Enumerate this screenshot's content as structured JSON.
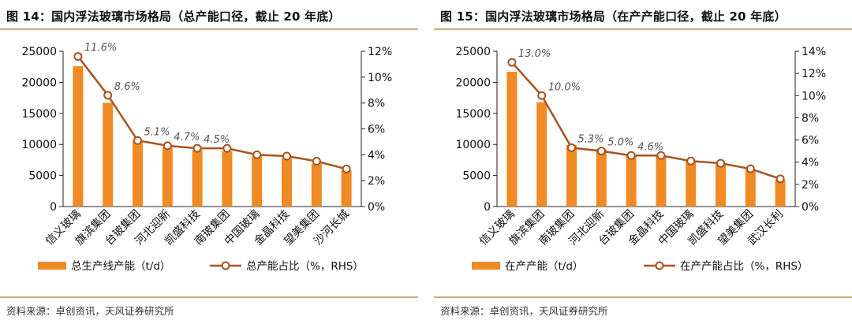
{
  "colors": {
    "bar": "#f08a24",
    "line": "#a9531e",
    "marker_fill": "#ffffff",
    "rule": "#d4aa7d"
  },
  "panels": [
    {
      "title": "图 14：国内浮法玻璃市场格局（总产能口径，截止 20 年底）",
      "source": "资料来源：卓创资讯，天风证券研究所",
      "chart_data": {
        "type": "bar",
        "categories": [
          "信义玻璃",
          "旗滨集团",
          "台玻集团",
          "河北迎新",
          "凯盛科技",
          "南玻集团",
          "中国玻璃",
          "金晶科技",
          "望美集团",
          "沙河长城"
        ],
        "series": [
          {
            "name": "总生产线产能（t/d）",
            "type": "bar",
            "axis": "left",
            "values": [
              22600,
              16700,
              10600,
              9500,
              9100,
              8900,
              8100,
              7800,
              6900,
              5800
            ]
          },
          {
            "name": "总产能占比（%，RHS）",
            "type": "line",
            "axis": "right",
            "values": [
              11.6,
              8.6,
              5.1,
              4.7,
              4.5,
              4.5,
              4.0,
              3.9,
              3.5,
              2.9
            ]
          }
        ],
        "annotations": [
          {
            "index": 0,
            "text": "11.6%"
          },
          {
            "index": 1,
            "text": "8.6%"
          },
          {
            "index": 2,
            "text": "5.1%"
          },
          {
            "index": 3,
            "text": "4.7%"
          },
          {
            "index": 4,
            "text": "4.5%"
          }
        ],
        "ylim_left": [
          0,
          25000
        ],
        "yticks_left": [
          "0",
          "5000",
          "10000",
          "15000",
          "20000",
          "25000"
        ],
        "ylim_right": [
          0,
          12
        ],
        "yticks_right": [
          "0%",
          "2%",
          "4%",
          "6%",
          "8%",
          "10%",
          "12%"
        ],
        "legend_placement": "bottom"
      }
    },
    {
      "title": "图 15：国内浮法玻璃市场格局（在产产能口径，截止 20 年底）",
      "source": "资料来源：卓创资讯，天风证券研究所",
      "chart_data": {
        "type": "bar",
        "categories": [
          "信义玻璃",
          "旗滨集团",
          "南玻集团",
          "河北迎新",
          "台玻集团",
          "金晶科技",
          "中国玻璃",
          "凯盛科技",
          "望美集团",
          "武汉长利"
        ],
        "series": [
          {
            "name": "在产产能（t/d）",
            "type": "bar",
            "axis": "left",
            "values": [
              21700,
              16800,
              9900,
              9300,
              8300,
              8100,
              7300,
              6800,
              6000,
              4300
            ]
          },
          {
            "name": "在产产能占比（%，RHS）",
            "type": "line",
            "axis": "right",
            "values": [
              13.0,
              10.0,
              5.3,
              5.0,
              4.6,
              4.6,
              4.1,
              3.9,
              3.4,
              2.5
            ]
          }
        ],
        "annotations": [
          {
            "index": 0,
            "text": "13.0%"
          },
          {
            "index": 1,
            "text": "10.0%"
          },
          {
            "index": 2,
            "text": "5.3%"
          },
          {
            "index": 3,
            "text": "5.0%"
          },
          {
            "index": 4,
            "text": "4.6%"
          }
        ],
        "ylim_left": [
          0,
          25000
        ],
        "yticks_left": [
          "0",
          "5000",
          "10000",
          "15000",
          "20000",
          "25000"
        ],
        "ylim_right": [
          0,
          14
        ],
        "yticks_right": [
          "0%",
          "2%",
          "4%",
          "6%",
          "8%",
          "10%",
          "12%",
          "14%"
        ],
        "legend_placement": "bottom"
      }
    }
  ]
}
